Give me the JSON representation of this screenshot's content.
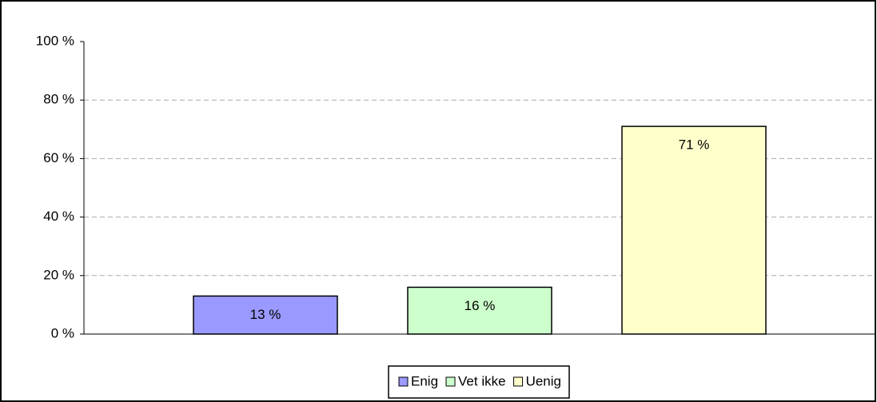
{
  "chart_data": {
    "type": "bar",
    "categories": [
      null
    ],
    "series": [
      {
        "name": "Enig",
        "color": "#9999ff",
        "values": [
          13
        ],
        "value_labels": [
          "13 %"
        ]
      },
      {
        "name": "Vet ikke",
        "color": "#ccffcc",
        "values": [
          16
        ],
        "value_labels": [
          "16 %"
        ]
      },
      {
        "name": "Uenig",
        "color": "#ffffcc",
        "values": [
          71
        ],
        "value_labels": [
          "71 %"
        ]
      }
    ],
    "ylim": [
      0,
      100
    ],
    "yticks": [
      {
        "value": 0,
        "label": "0 %"
      },
      {
        "value": 20,
        "label": "20 %"
      },
      {
        "value": 40,
        "label": "40 %"
      },
      {
        "value": 60,
        "label": "60 %"
      },
      {
        "value": 80,
        "label": "80 %"
      },
      {
        "value": 100,
        "label": "100 %"
      }
    ],
    "grid": true,
    "legend": "bottom"
  }
}
